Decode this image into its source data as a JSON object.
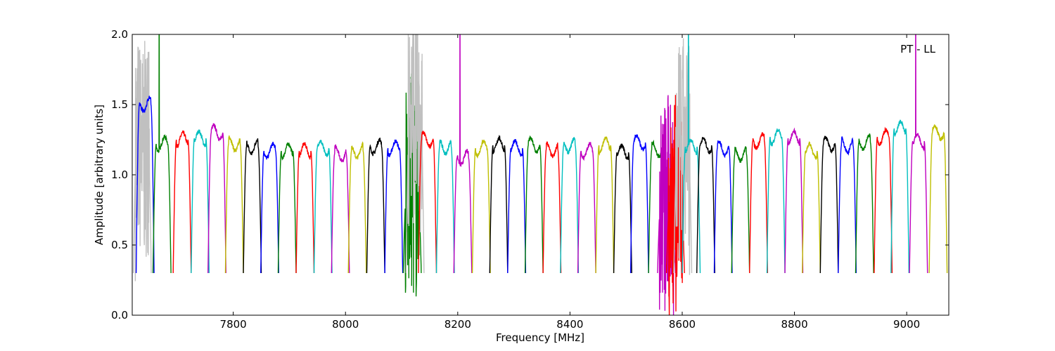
{
  "chart_data": {
    "type": "line",
    "title": "",
    "xlabel": "Frequency [MHz]",
    "ylabel": "Amplitude [arbitrary units]",
    "xlim": [
      7620,
      9075
    ],
    "ylim": [
      0.0,
      2.0
    ],
    "xticks": [
      7800,
      8000,
      8200,
      8400,
      8600,
      8800,
      9000
    ],
    "yticks": [
      0.0,
      0.5,
      1.0,
      1.5,
      2.0
    ],
    "xtick_labels": [
      "7800",
      "8000",
      "8200",
      "8400",
      "8600",
      "8800",
      "9000"
    ],
    "ytick_labels": [
      "0.0",
      "0.5",
      "1.0",
      "1.5",
      "2.0"
    ],
    "grid": false,
    "legend": "none",
    "annotation": "PT - LL",
    "colors": [
      "#0000ff",
      "#008000",
      "#ff0000",
      "#00bfbf",
      "#bf00bf",
      "#bfbf00",
      "#000000"
    ],
    "flagged_color": "#c0c0c0",
    "channel_width_mhz": 32,
    "channels": [
      {
        "start": 7622,
        "level": 1.2,
        "color": "#c0c0c0",
        "rfi": "heavy"
      },
      {
        "start": 7627,
        "level": 1.5,
        "color": "#0000ff",
        "rfi": "none"
      },
      {
        "start": 7657,
        "level": 1.22,
        "color": "#008000",
        "rfi": "spike"
      },
      {
        "start": 7693,
        "level": 1.25,
        "color": "#ff0000",
        "rfi": "none"
      },
      {
        "start": 7725,
        "level": 1.26,
        "color": "#00bfbf",
        "rfi": "none"
      },
      {
        "start": 7755,
        "level": 1.3,
        "color": "#bf00bf",
        "rfi": "none"
      },
      {
        "start": 7786,
        "level": 1.22,
        "color": "#bfbf00",
        "rfi": "none"
      },
      {
        "start": 7818,
        "level": 1.2,
        "color": "#000000",
        "rfi": "none"
      },
      {
        "start": 7849,
        "level": 1.17,
        "color": "#0000ff",
        "rfi": "none"
      },
      {
        "start": 7880,
        "level": 1.17,
        "color": "#008000",
        "rfi": "none"
      },
      {
        "start": 7912,
        "level": 1.17,
        "color": "#ff0000",
        "rfi": "none"
      },
      {
        "start": 7944,
        "level": 1.19,
        "color": "#00bfbf",
        "rfi": "none"
      },
      {
        "start": 7975,
        "level": 1.15,
        "color": "#bf00bf",
        "rfi": "none"
      },
      {
        "start": 8005,
        "level": 1.17,
        "color": "#bfbf00",
        "rfi": "none"
      },
      {
        "start": 8038,
        "level": 1.2,
        "color": "#000000",
        "rfi": "none"
      },
      {
        "start": 8070,
        "level": 1.19,
        "color": "#0000ff",
        "rfi": "none"
      },
      {
        "start": 8103,
        "level": 0.9,
        "color": "#008000",
        "rfi": "heavy"
      },
      {
        "start": 8108,
        "level": 1.4,
        "color": "#c0c0c0",
        "rfi": "heavy"
      },
      {
        "start": 8130,
        "level": 1.25,
        "color": "#ff0000",
        "rfi": "none"
      },
      {
        "start": 8162,
        "level": 1.2,
        "color": "#00bfbf",
        "rfi": "none"
      },
      {
        "start": 8193,
        "level": 1.12,
        "color": "#bf00bf",
        "rfi": "spike"
      },
      {
        "start": 8226,
        "level": 1.19,
        "color": "#bfbf00",
        "rfi": "none"
      },
      {
        "start": 8257,
        "level": 1.21,
        "color": "#000000",
        "rfi": "none"
      },
      {
        "start": 8289,
        "level": 1.19,
        "color": "#0000ff",
        "rfi": "none"
      },
      {
        "start": 8320,
        "level": 1.21,
        "color": "#008000",
        "rfi": "none"
      },
      {
        "start": 8352,
        "level": 1.18,
        "color": "#ff0000",
        "rfi": "none"
      },
      {
        "start": 8383,
        "level": 1.21,
        "color": "#00bfbf",
        "rfi": "none"
      },
      {
        "start": 8414,
        "level": 1.17,
        "color": "#bf00bf",
        "rfi": "none"
      },
      {
        "start": 8446,
        "level": 1.21,
        "color": "#bfbf00",
        "rfi": "none"
      },
      {
        "start": 8478,
        "level": 1.16,
        "color": "#000000",
        "rfi": "none"
      },
      {
        "start": 8508,
        "level": 1.23,
        "color": "#0000ff",
        "rfi": "none"
      },
      {
        "start": 8540,
        "level": 1.18,
        "color": "#008000",
        "rfi": "none"
      },
      {
        "start": 8556,
        "level": 0.8,
        "color": "#bf00bf",
        "rfi": "heavy"
      },
      {
        "start": 8572,
        "level": 0.8,
        "color": "#ff0000",
        "rfi": "heavy"
      },
      {
        "start": 8585,
        "level": 1.15,
        "color": "#c0c0c0",
        "rfi": "heavy"
      },
      {
        "start": 8600,
        "level": 1.2,
        "color": "#00bfbf",
        "rfi": "spike"
      },
      {
        "start": 8626,
        "level": 1.21,
        "color": "#000000",
        "rfi": "none"
      },
      {
        "start": 8657,
        "level": 1.19,
        "color": "#0000ff",
        "rfi": "none"
      },
      {
        "start": 8688,
        "level": 1.15,
        "color": "#008000",
        "rfi": "none"
      },
      {
        "start": 8720,
        "level": 1.24,
        "color": "#ff0000",
        "rfi": "none"
      },
      {
        "start": 8751,
        "level": 1.27,
        "color": "#00bfbf",
        "rfi": "none"
      },
      {
        "start": 8783,
        "level": 1.26,
        "color": "#bf00bf",
        "rfi": "none"
      },
      {
        "start": 8814,
        "level": 1.17,
        "color": "#bfbf00",
        "rfi": "none"
      },
      {
        "start": 8846,
        "level": 1.22,
        "color": "#000000",
        "rfi": "none"
      },
      {
        "start": 8878,
        "level": 1.21,
        "color": "#0000ff",
        "rfi": "none"
      },
      {
        "start": 8909,
        "level": 1.23,
        "color": "#008000",
        "rfi": "none"
      },
      {
        "start": 8942,
        "level": 1.27,
        "color": "#ff0000",
        "rfi": "none"
      },
      {
        "start": 8972,
        "level": 1.33,
        "color": "#00bfbf",
        "rfi": "none"
      },
      {
        "start": 9005,
        "level": 1.24,
        "color": "#bf00bf",
        "rfi": "spike"
      },
      {
        "start": 9040,
        "level": 1.3,
        "color": "#bfbf00",
        "rfi": "none"
      }
    ]
  }
}
